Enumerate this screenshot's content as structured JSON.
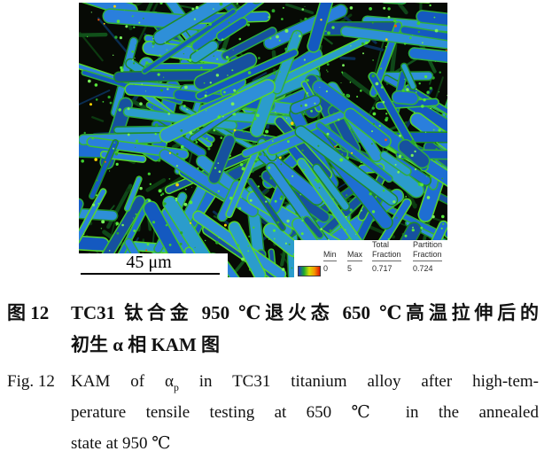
{
  "figure": {
    "scale_bar": {
      "label": "45 μm"
    },
    "legend": {
      "columns": [
        {
          "header_top": "",
          "header": "Min",
          "value": "0"
        },
        {
          "header_top": "",
          "header": "Max",
          "value": "5"
        },
        {
          "header_top": "Total",
          "header": "Fraction",
          "value": "0.717"
        },
        {
          "header_top": "Partition",
          "header": "Fraction",
          "value": "0.724"
        }
      ],
      "colorbar_gradient": [
        "#2134cc",
        "#18a82e",
        "#d6de00",
        "#f59300",
        "#df1500"
      ]
    },
    "micrograph_palette": {
      "background": "#070a05",
      "lath_blues": [
        "#1459c0",
        "#1e6ed2",
        "#2a7fdc",
        "#16519f",
        "#2e8fd8",
        "#2b9ccc"
      ],
      "edge_greens": [
        "#2fae3c",
        "#3fc42e",
        "#57d82a",
        "#1f8d26"
      ],
      "underlath_darks": [
        "#0c3a10",
        "#11511a",
        "#0a2d52",
        "#0f4618"
      ],
      "speckle_greens": [
        "#3fcf2f",
        "#57e83a",
        "#2aa828",
        "#79f05a"
      ],
      "hot_yellow": "#ffd400",
      "hot_red": "#ff5500"
    }
  },
  "caption_zh": {
    "label": "图 12",
    "line1": "TC31 钛合金 950 ℃退火态 650 ℃高温拉伸后的",
    "line2": "初生 α 相 KAM 图"
  },
  "caption_en": {
    "label": "Fig. 12",
    "line1_pre": "KAM of α",
    "line1_sub": "p",
    "line1_post": " in TC31 titanium alloy after high-tem-",
    "line2": "perature tensile testing at 650 ℃ in the annealed",
    "line3": "state at 950 ℃"
  }
}
